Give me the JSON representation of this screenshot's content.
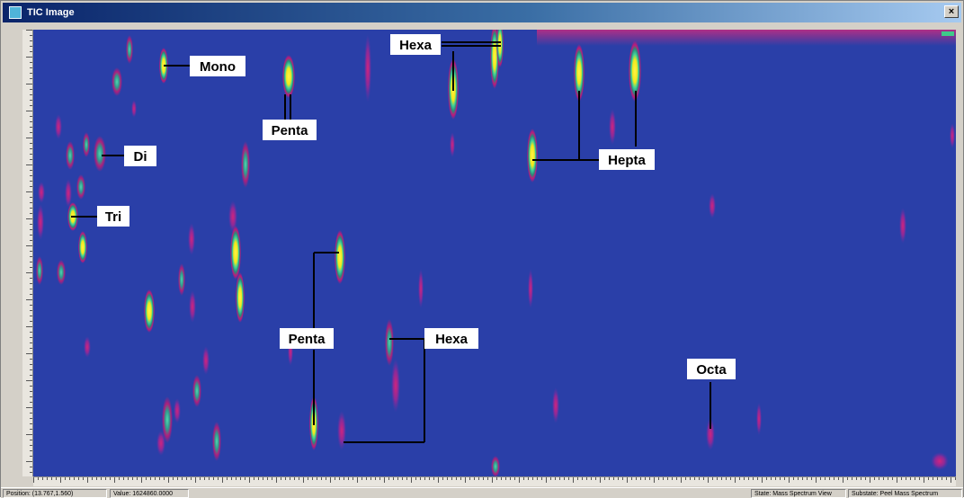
{
  "window": {
    "title": "TIC Image",
    "app_icon": "image-icon",
    "close_label": "×"
  },
  "plot": {
    "colors": {
      "background": "#2a3fa8",
      "low": "#c2187a",
      "mid": "#3ec9a0",
      "high": "#f4ee1e",
      "label_bg": "#ffffff",
      "label_text": "#000000"
    },
    "labels": [
      {
        "id": "mono",
        "text": "Mono"
      },
      {
        "id": "di",
        "text": "Di"
      },
      {
        "id": "tri",
        "text": "Tri"
      },
      {
        "id": "penta-top",
        "text": "Penta"
      },
      {
        "id": "hexa-top",
        "text": "Hexa"
      },
      {
        "id": "hepta",
        "text": "Hepta"
      },
      {
        "id": "penta-bottom",
        "text": "Penta"
      },
      {
        "id": "hexa-bottom",
        "text": "Hexa"
      },
      {
        "id": "octa",
        "text": "Octa"
      }
    ]
  },
  "statusbar": {
    "position": "Position: (13.767,1.560)",
    "value": "Value: 1624860.0000",
    "state": "State: Mass Spectrum View",
    "substate": "Substate: Peel Mass Spectrum"
  }
}
